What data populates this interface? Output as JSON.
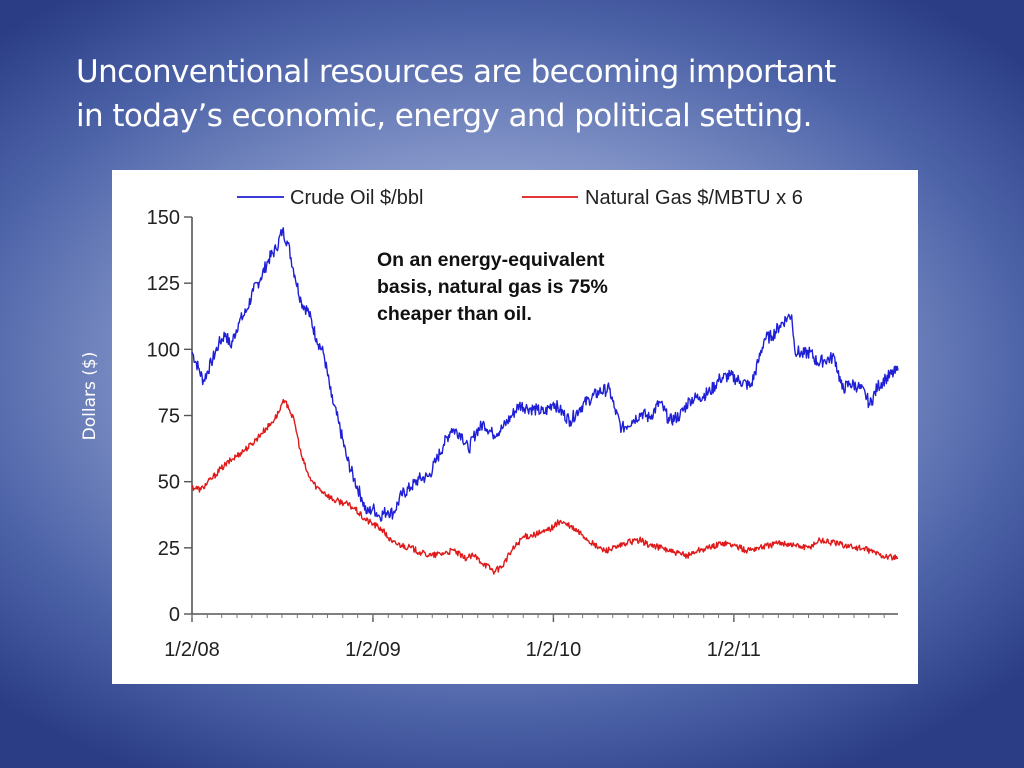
{
  "slide": {
    "title_line1": "Unconventional resources are becoming important",
    "title_line2": "in today’s economic, energy and political setting.",
    "y_axis_title": "Dollars ($)"
  },
  "chart_data": {
    "type": "line",
    "title": "",
    "xlabel": "",
    "ylabel": "Dollars ($)",
    "ylim": [
      0,
      150
    ],
    "yticks": [
      0,
      25,
      50,
      75,
      100,
      125,
      150
    ],
    "xlim": [
      "2008-01-02",
      "2011-11-30"
    ],
    "xticks": [
      {
        "date": "2008-01-02",
        "label": "1/2/08"
      },
      {
        "date": "2009-01-02",
        "label": "1/2/09"
      },
      {
        "date": "2010-01-02",
        "label": "1/2/10"
      },
      {
        "date": "2011-01-02",
        "label": "1/2/11"
      }
    ],
    "grid": false,
    "legend": "top",
    "annotation": [
      "On an energy-equivalent",
      "basis, natural gas is 75%",
      "cheaper than oil."
    ],
    "series": [
      {
        "name": "Crude Oil $/bbl",
        "color": "#1f1fd6",
        "x": [
          "2008-01-02",
          "2008-01-15",
          "2008-01-25",
          "2008-02-10",
          "2008-02-25",
          "2008-03-10",
          "2008-03-20",
          "2008-04-05",
          "2008-04-20",
          "2008-05-05",
          "2008-05-20",
          "2008-06-05",
          "2008-06-20",
          "2008-07-03",
          "2008-07-14",
          "2008-07-28",
          "2008-08-10",
          "2008-08-25",
          "2008-09-10",
          "2008-09-25",
          "2008-10-10",
          "2008-10-25",
          "2008-11-10",
          "2008-11-25",
          "2008-12-10",
          "2008-12-21",
          "2009-01-02",
          "2009-01-15",
          "2009-02-01",
          "2009-02-12",
          "2009-03-01",
          "2009-03-20",
          "2009-04-05",
          "2009-04-25",
          "2009-05-10",
          "2009-05-25",
          "2009-06-10",
          "2009-06-30",
          "2009-07-14",
          "2009-07-30",
          "2009-08-15",
          "2009-09-01",
          "2009-09-20",
          "2009-10-10",
          "2009-10-25",
          "2009-11-10",
          "2009-12-01",
          "2009-12-15",
          "2010-01-02",
          "2010-01-15",
          "2010-02-05",
          "2010-02-25",
          "2010-03-15",
          "2010-04-05",
          "2010-04-25",
          "2010-05-05",
          "2010-05-20",
          "2010-06-10",
          "2010-06-30",
          "2010-07-15",
          "2010-08-05",
          "2010-08-25",
          "2010-09-15",
          "2010-10-05",
          "2010-10-25",
          "2010-11-15",
          "2010-12-05",
          "2010-12-25",
          "2011-01-15",
          "2011-02-05",
          "2011-02-20",
          "2011-03-05",
          "2011-03-20",
          "2011-04-05",
          "2011-04-20",
          "2011-04-29",
          "2011-05-05",
          "2011-05-20",
          "2011-06-05",
          "2011-06-20",
          "2011-07-05",
          "2011-07-25",
          "2011-08-09",
          "2011-08-25",
          "2011-09-10",
          "2011-09-25",
          "2011-10-04",
          "2011-10-20",
          "2011-11-05",
          "2011-11-30"
        ],
        "values": [
          99,
          93,
          88,
          95,
          102,
          106,
          101,
          110,
          114,
          122,
          127,
          134,
          138,
          145,
          140,
          128,
          118,
          114,
          104,
          98,
          82,
          72,
          59,
          51,
          44,
          38,
          40,
          37,
          39,
          38,
          45,
          48,
          51,
          52,
          58,
          64,
          70,
          68,
          62,
          69,
          72,
          68,
          70,
          75,
          79,
          78,
          77,
          76,
          80,
          77,
          73,
          78,
          81,
          84,
          85,
          78,
          70,
          73,
          76,
          74,
          80,
          73,
          75,
          81,
          82,
          84,
          89,
          90,
          88,
          86,
          95,
          104,
          105,
          109,
          112,
          113,
          100,
          98,
          99,
          95,
          96,
          97,
          85,
          87,
          86,
          83,
          79,
          86,
          89,
          92
        ]
      },
      {
        "name": "Natural Gas $/MBTU x 6",
        "color": "#e01a1a",
        "x": [
          "2008-01-02",
          "2008-01-20",
          "2008-02-10",
          "2008-03-01",
          "2008-03-20",
          "2008-04-10",
          "2008-05-01",
          "2008-05-20",
          "2008-06-10",
          "2008-06-25",
          "2008-07-03",
          "2008-07-14",
          "2008-07-28",
          "2008-08-10",
          "2008-08-25",
          "2008-09-10",
          "2008-09-25",
          "2008-10-15",
          "2008-11-05",
          "2008-11-25",
          "2008-12-15",
          "2009-01-02",
          "2009-01-20",
          "2009-02-10",
          "2009-03-01",
          "2009-03-20",
          "2009-04-10",
          "2009-05-01",
          "2009-05-25",
          "2009-06-15",
          "2009-07-05",
          "2009-07-25",
          "2009-08-15",
          "2009-09-05",
          "2009-09-20",
          "2009-10-10",
          "2009-11-01",
          "2009-11-25",
          "2009-12-15",
          "2010-01-02",
          "2010-01-15",
          "2010-02-05",
          "2010-03-01",
          "2010-03-25",
          "2010-04-15",
          "2010-05-10",
          "2010-06-01",
          "2010-06-25",
          "2010-07-15",
          "2010-08-10",
          "2010-09-05",
          "2010-09-30",
          "2010-10-20",
          "2010-11-15",
          "2010-12-10",
          "2011-01-02",
          "2011-01-25",
          "2011-02-20",
          "2011-03-15",
          "2011-04-10",
          "2011-05-05",
          "2011-06-01",
          "2011-06-25",
          "2011-07-20",
          "2011-08-15",
          "2011-09-10",
          "2011-10-05",
          "2011-10-30",
          "2011-11-30"
        ],
        "values": [
          48,
          47,
          51,
          55,
          58,
          61,
          64,
          68,
          72,
          76,
          80,
          79,
          72,
          60,
          52,
          48,
          46,
          43,
          42,
          40,
          36,
          34,
          32,
          27,
          26,
          25,
          23,
          22,
          23,
          24,
          21,
          22,
          19,
          16,
          18,
          24,
          29,
          30,
          31,
          33,
          35,
          33,
          30,
          26,
          24,
          25,
          27,
          28,
          26,
          25,
          23,
          22,
          24,
          25,
          27,
          26,
          24,
          25,
          26,
          27,
          26,
          25,
          28,
          27,
          26,
          25,
          24,
          22,
          21
        ]
      }
    ]
  }
}
